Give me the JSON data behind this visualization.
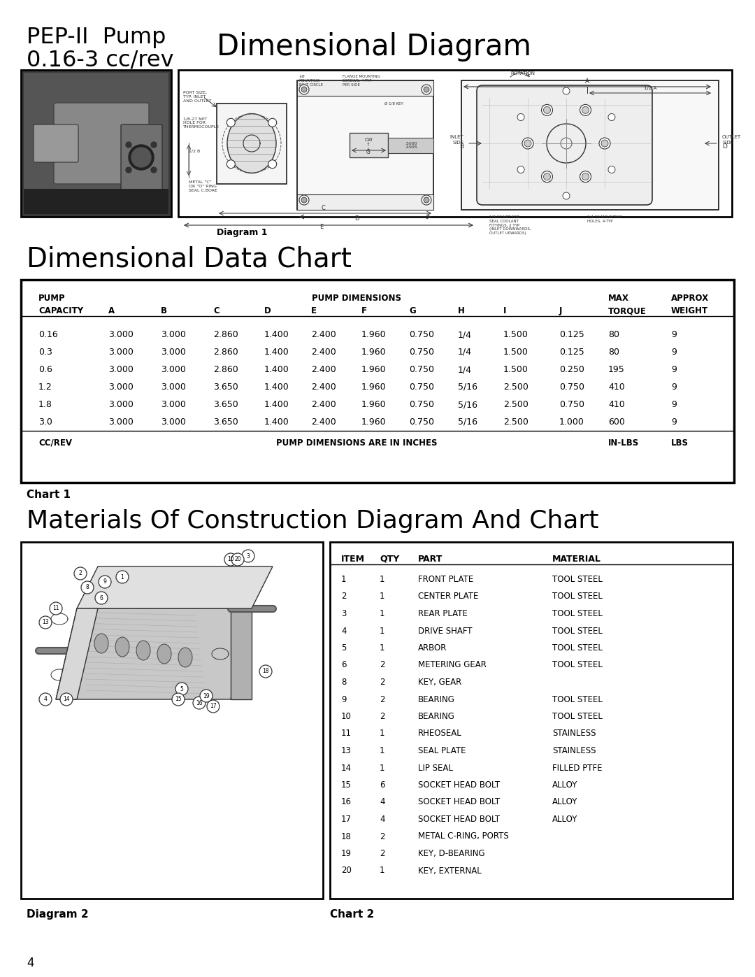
{
  "page_title_left_line1": "PEP-II  Pump",
  "page_title_left_line2": "0.16-3 cc/rev",
  "page_title_right": "Dimensional Diagram",
  "section2_title": "Dimensional Data Chart",
  "section3_title": "Materials Of Construction Diagram And Chart",
  "diagram1_label": "Diagram 1",
  "diagram2_label": "Diagram 2",
  "chart1_label": "Chart 1",
  "chart2_label": "Chart 2",
  "page_number": "4",
  "table1_data": [
    [
      "0.16",
      "3.000",
      "3.000",
      "2.860",
      "1.400",
      "2.400",
      "1.960",
      "0.750",
      "1/4",
      "1.500",
      "0.125",
      "80",
      "9"
    ],
    [
      "0.3",
      "3.000",
      "3.000",
      "2.860",
      "1.400",
      "2.400",
      "1.960",
      "0.750",
      "1/4",
      "1.500",
      "0.125",
      "80",
      "9"
    ],
    [
      "0.6",
      "3.000",
      "3.000",
      "2.860",
      "1.400",
      "2.400",
      "1.960",
      "0.750",
      "1/4",
      "1.500",
      "0.250",
      "195",
      "9"
    ],
    [
      "1.2",
      "3.000",
      "3.000",
      "3.650",
      "1.400",
      "2.400",
      "1.960",
      "0.750",
      "5/16",
      "2.500",
      "0.750",
      "410",
      "9"
    ],
    [
      "1.8",
      "3.000",
      "3.000",
      "3.650",
      "1.400",
      "2.400",
      "1.960",
      "0.750",
      "5/16",
      "2.500",
      "0.750",
      "410",
      "9"
    ],
    [
      "3.0",
      "3.000",
      "3.000",
      "3.650",
      "1.400",
      "2.400",
      "1.960",
      "0.750",
      "5/16",
      "2.500",
      "1.000",
      "600",
      "9"
    ]
  ],
  "table2_data": [
    [
      "1",
      "1",
      "FRONT PLATE",
      "TOOL STEEL"
    ],
    [
      "2",
      "1",
      "CENTER PLATE",
      "TOOL STEEL"
    ],
    [
      "3",
      "1",
      "REAR PLATE",
      "TOOL STEEL"
    ],
    [
      "4",
      "1",
      "DRIVE SHAFT",
      "TOOL STEEL"
    ],
    [
      "5",
      "1",
      "ARBOR",
      "TOOL STEEL"
    ],
    [
      "6",
      "2",
      "METERING GEAR",
      "TOOL STEEL"
    ],
    [
      "8",
      "2",
      "KEY, GEAR",
      ""
    ],
    [
      "9",
      "2",
      "BEARING",
      "TOOL STEEL"
    ],
    [
      "10",
      "2",
      "BEARING",
      "TOOL STEEL"
    ],
    [
      "11",
      "1",
      "RHEOSEAL",
      "STAINLESS"
    ],
    [
      "13",
      "1",
      "SEAL PLATE",
      "STAINLESS"
    ],
    [
      "14",
      "1",
      "LIP SEAL",
      "FILLED PTFE"
    ],
    [
      "15",
      "6",
      "SOCKET HEAD BOLT",
      "ALLOY"
    ],
    [
      "16",
      "4",
      "SOCKET HEAD BOLT",
      "ALLOY"
    ],
    [
      "17",
      "4",
      "SOCKET HEAD BOLT",
      "ALLOY"
    ],
    [
      "18",
      "2",
      "METAL C-RING, PORTS",
      ""
    ],
    [
      "19",
      "2",
      "KEY, D-BEARING",
      ""
    ],
    [
      "20",
      "1",
      "KEY, EXTERNAL",
      ""
    ]
  ],
  "bg_color": "#ffffff"
}
